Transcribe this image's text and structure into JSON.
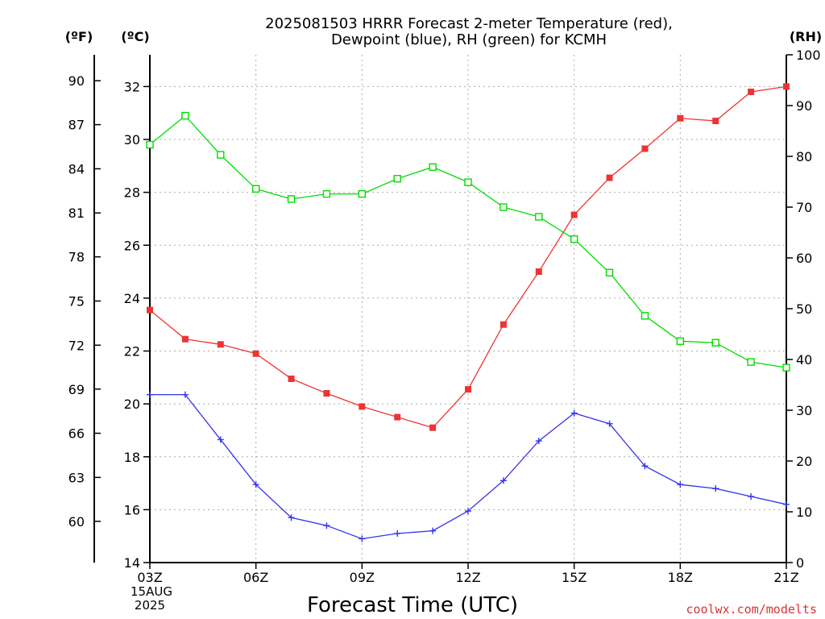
{
  "chart_data": {
    "type": "line",
    "title_line1": "2025081503 HRRR Forecast 2-meter Temperature (red),",
    "title_line2": "Dewpoint (blue), RH (green) for KCMH",
    "xlabel": "Forecast Time (UTC)",
    "date_label_line1": "15AUG",
    "date_label_line2": "2025",
    "credit": "coolwx.com/modelts",
    "left_axis_f": {
      "unit": "(ºF)",
      "ticks": [
        {
          "v": 90,
          "c": 32.22,
          "label": "90"
        },
        {
          "v": 87,
          "c": 30.56,
          "label": "87"
        },
        {
          "v": 84,
          "c": 28.89,
          "label": "84"
        },
        {
          "v": 81,
          "c": 27.22,
          "label": "81"
        },
        {
          "v": 78,
          "c": 25.56,
          "label": "78"
        },
        {
          "v": 75,
          "c": 23.89,
          "label": "75"
        },
        {
          "v": 72,
          "c": 22.22,
          "label": "72"
        },
        {
          "v": 69,
          "c": 20.56,
          "label": "69"
        },
        {
          "v": 66,
          "c": 18.89,
          "label": "66"
        },
        {
          "v": 63,
          "c": 17.22,
          "label": "63"
        },
        {
          "v": 60,
          "c": 15.56,
          "label": "60"
        }
      ]
    },
    "left_axis_c": {
      "unit": "(ºC)",
      "ylim": [
        14,
        33.2
      ],
      "ticks": [
        {
          "v": 32,
          "label": "32"
        },
        {
          "v": 30,
          "label": "30"
        },
        {
          "v": 28,
          "label": "28"
        },
        {
          "v": 26,
          "label": "26"
        },
        {
          "v": 24,
          "label": "24"
        },
        {
          "v": 22,
          "label": "22"
        },
        {
          "v": 20,
          "label": "20"
        },
        {
          "v": 18,
          "label": "18"
        },
        {
          "v": 16,
          "label": "16"
        },
        {
          "v": 14,
          "label": "14"
        }
      ]
    },
    "right_axis_rh": {
      "unit": "(RH)",
      "ylim": [
        0,
        100
      ],
      "ticks": [
        {
          "v": 100,
          "label": "100"
        },
        {
          "v": 90,
          "label": "90"
        },
        {
          "v": 80,
          "label": "80"
        },
        {
          "v": 70,
          "label": "70"
        },
        {
          "v": 60,
          "label": "60"
        },
        {
          "v": 50,
          "label": "50"
        },
        {
          "v": 40,
          "label": "40"
        },
        {
          "v": 30,
          "label": "30"
        },
        {
          "v": 20,
          "label": "20"
        },
        {
          "v": 10,
          "label": "10"
        },
        {
          "v": 0,
          "label": "0"
        }
      ]
    },
    "x_axis": {
      "xlim": [
        3,
        21
      ],
      "ticks": [
        {
          "v": 3,
          "label": "03Z"
        },
        {
          "v": 6,
          "label": "06Z"
        },
        {
          "v": 9,
          "label": "09Z"
        },
        {
          "v": 12,
          "label": "12Z"
        },
        {
          "v": 15,
          "label": "15Z"
        },
        {
          "v": 18,
          "label": "18Z"
        },
        {
          "v": 21,
          "label": "21Z"
        }
      ]
    },
    "x": [
      3,
      4,
      5,
      6,
      7,
      8,
      9,
      10,
      11,
      12,
      13,
      14,
      15,
      16,
      17,
      18,
      19,
      20,
      21
    ],
    "series": [
      {
        "axis": "c",
        "color": "#ee3333",
        "marker": "square-filled",
        "values": [
          23.55,
          22.45,
          22.25,
          21.9,
          20.95,
          20.4,
          19.9,
          19.5,
          19.1,
          20.55,
          23.0,
          25.0,
          27.15,
          28.55,
          29.65,
          30.8,
          30.7,
          31.8,
          32.0
        ]
      },
      {
        "axis": "c",
        "color": "#3333ee",
        "marker": "plus",
        "values": [
          20.35,
          20.35,
          18.65,
          16.95,
          15.7,
          15.4,
          14.9,
          15.1,
          15.2,
          15.95,
          17.1,
          18.6,
          19.65,
          19.25,
          17.65,
          16.95,
          16.8,
          16.5,
          16.2
        ]
      },
      {
        "axis": "rh",
        "color": "#00dd00",
        "marker": "square-open",
        "values": [
          82.3,
          88.0,
          80.3,
          73.6,
          71.6,
          72.6,
          72.6,
          75.6,
          77.9,
          74.9,
          70.0,
          68.1,
          63.7,
          57.1,
          48.6,
          43.6,
          43.3,
          39.5,
          38.4
        ]
      }
    ],
    "colors": {
      "grid": "#aaaaaa",
      "temperature": "#ee3333",
      "dewpoint": "#3333ee",
      "rh": "#00dd00",
      "credit": "#dd3333"
    }
  }
}
